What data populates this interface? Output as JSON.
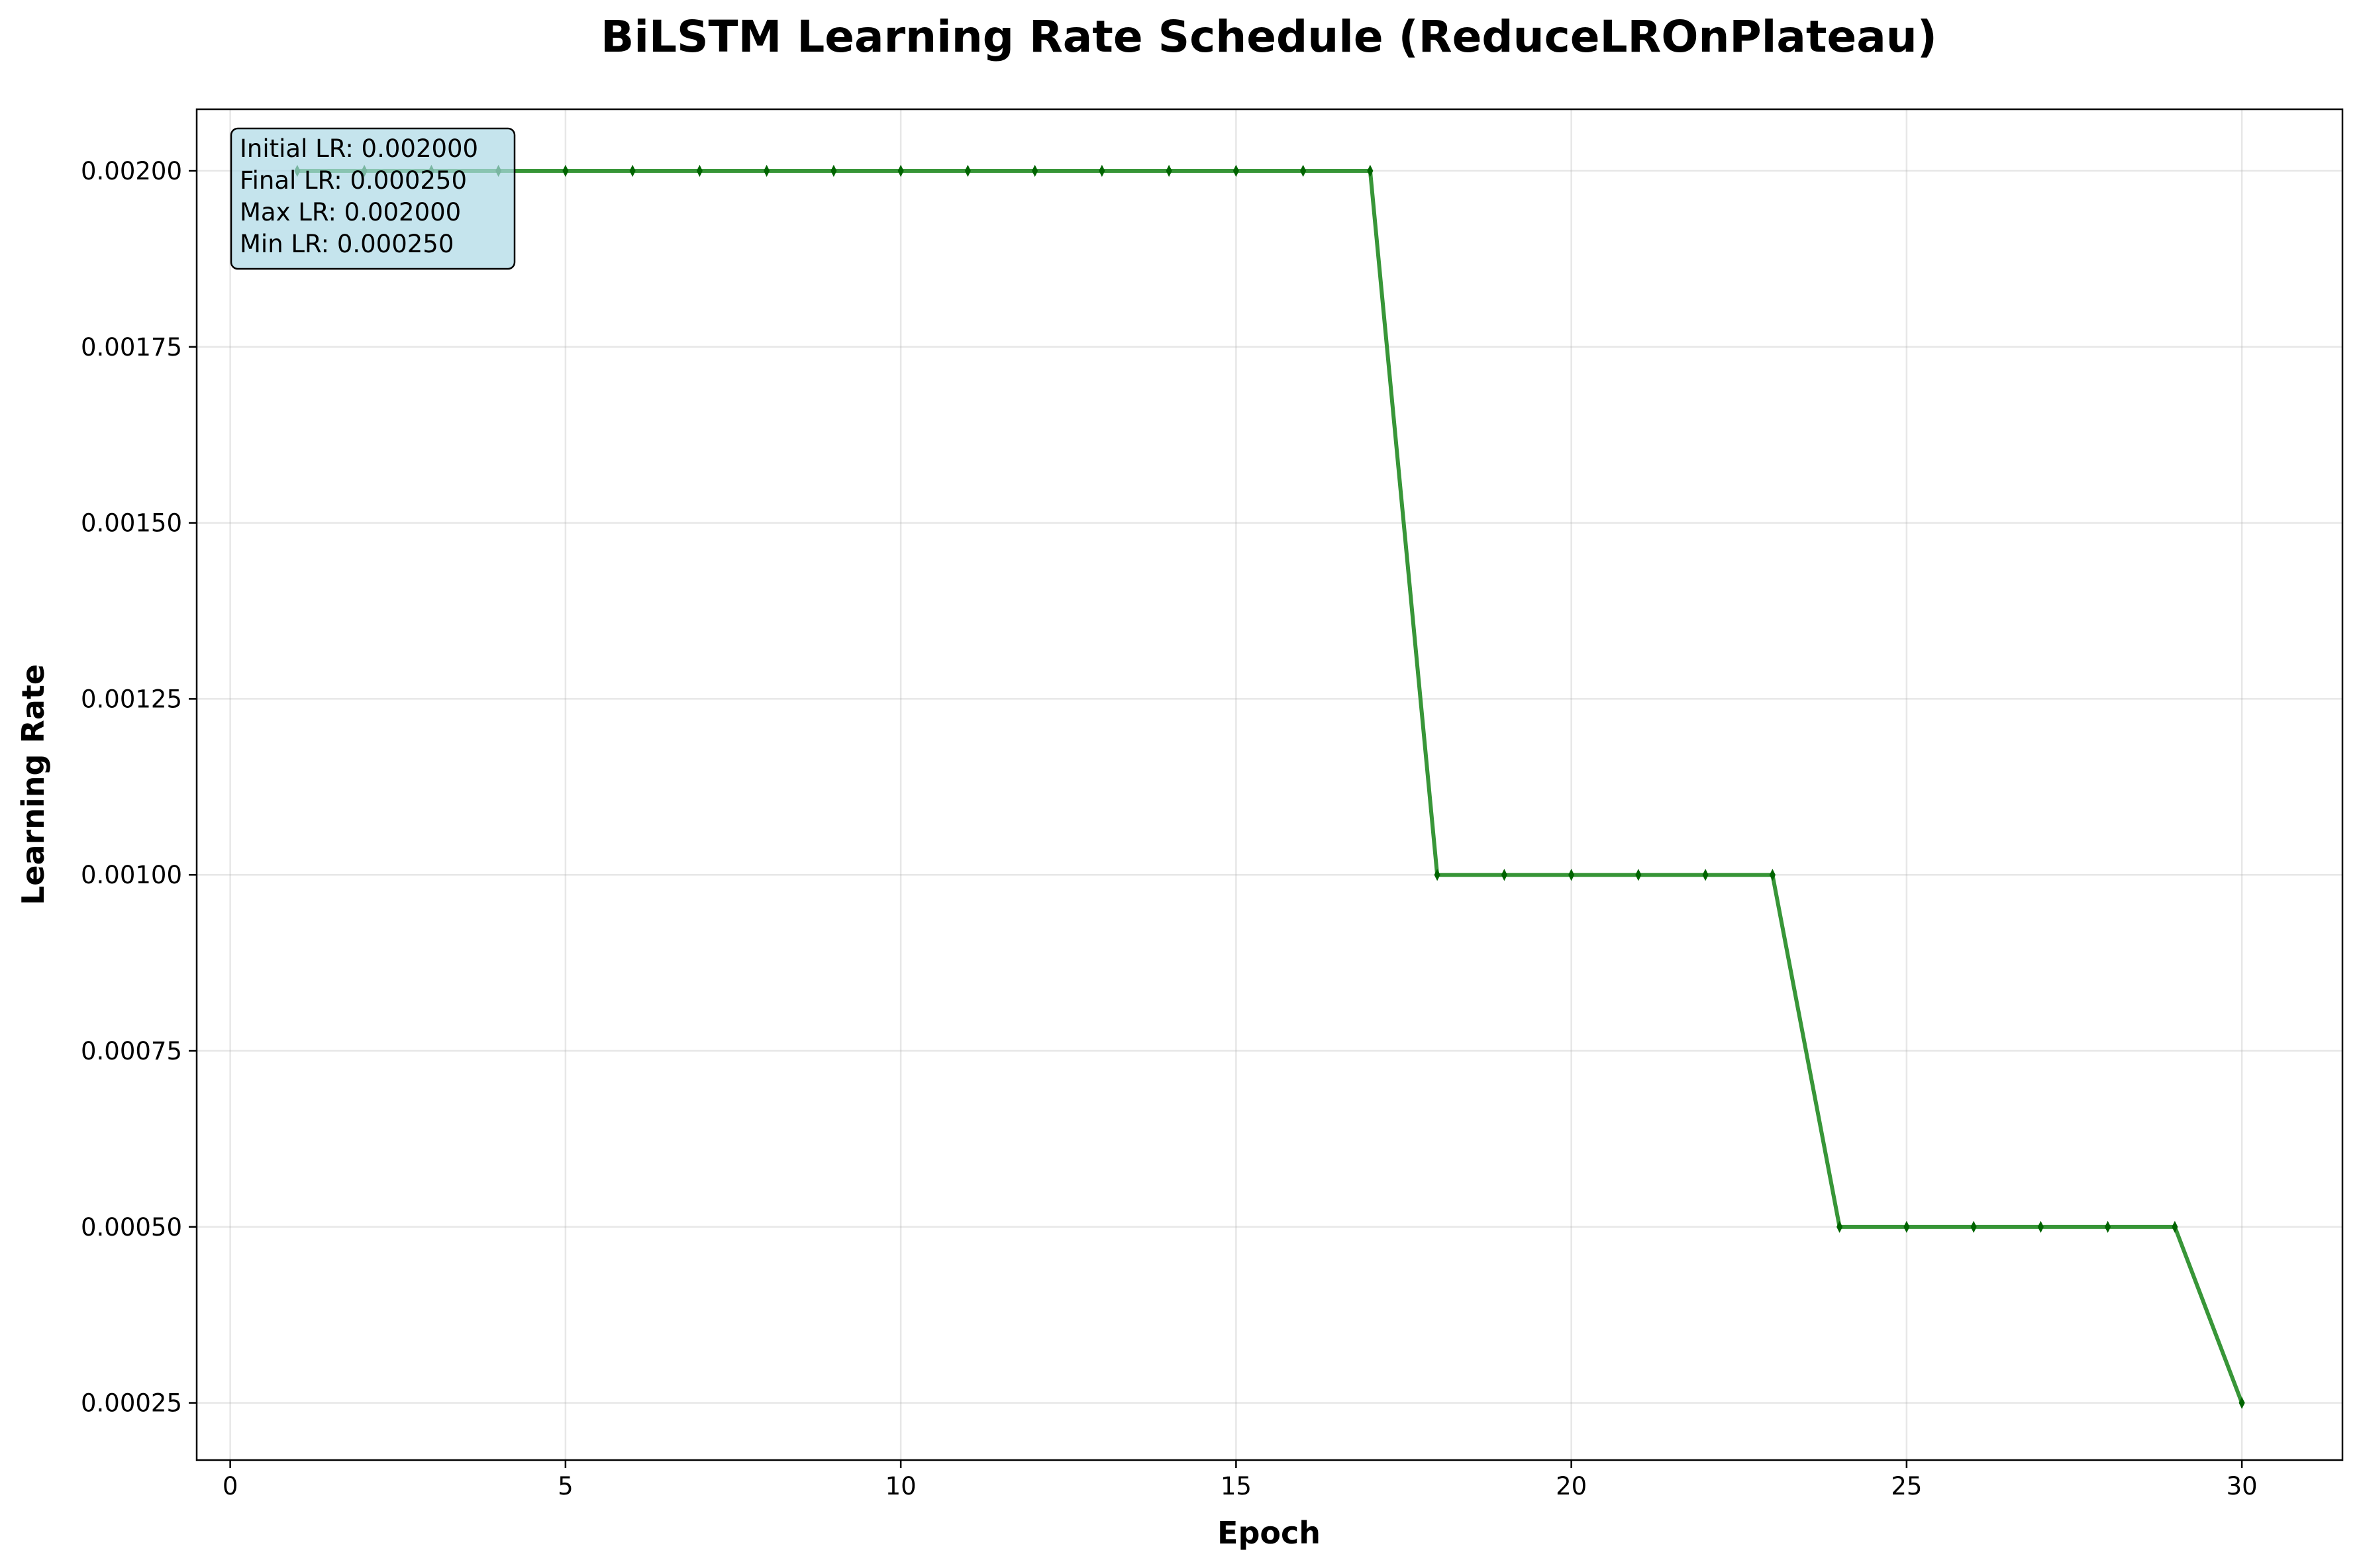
{
  "chart_data": {
    "type": "line",
    "title": "BiLSTM Learning Rate Schedule (ReduceLROnPlateau)",
    "xlabel": "Epoch",
    "ylabel": "Learning Rate",
    "xlim": [
      -0.5,
      31.5
    ],
    "ylim": [
      0.00016875,
      0.0020875
    ],
    "x_ticks": [
      0,
      5,
      10,
      15,
      20,
      25,
      30
    ],
    "x_tick_labels": [
      "0",
      "5",
      "10",
      "15",
      "20",
      "25",
      "30"
    ],
    "y_ticks": [
      0.00025,
      0.0005,
      0.00075,
      0.001,
      0.00125,
      0.0015,
      0.00175,
      0.002
    ],
    "y_tick_labels": [
      "0.00025",
      "0.00050",
      "0.00075",
      "0.00100",
      "0.00125",
      "0.00150",
      "0.00175",
      "0.00200"
    ],
    "grid": true,
    "series": [
      {
        "color": "#228B22",
        "x": [
          1,
          2,
          3,
          4,
          5,
          6,
          7,
          8,
          9,
          10,
          11,
          12,
          13,
          14,
          15,
          16,
          17,
          18,
          19,
          20,
          21,
          22,
          23,
          24,
          25,
          26,
          27,
          28,
          29,
          30
        ],
        "values": [
          0.002,
          0.002,
          0.002,
          0.002,
          0.002,
          0.002,
          0.002,
          0.002,
          0.002,
          0.002,
          0.002,
          0.002,
          0.002,
          0.002,
          0.002,
          0.002,
          0.002,
          0.001,
          0.001,
          0.001,
          0.001,
          0.001,
          0.001,
          0.0005,
          0.0005,
          0.0005,
          0.0005,
          0.0005,
          0.0005,
          0.00025
        ]
      }
    ],
    "annotations": [
      "Initial LR: 0.002000",
      "Final LR: 0.000250",
      "Max LR: 0.002000",
      "Min LR: 0.000250"
    ],
    "annotation_box_color": "#ADD8E6"
  }
}
